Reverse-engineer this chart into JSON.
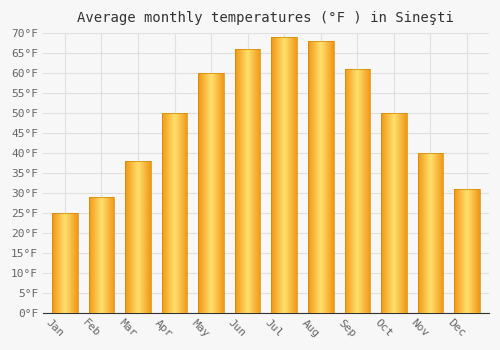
{
  "title": "Average monthly temperatures (°F ) in Sineşti",
  "months": [
    "Jan",
    "Feb",
    "Mar",
    "Apr",
    "May",
    "Jun",
    "Jul",
    "Aug",
    "Sep",
    "Oct",
    "Nov",
    "Dec"
  ],
  "values": [
    25,
    29,
    38,
    50,
    60,
    66,
    69,
    68,
    61,
    50,
    40,
    31
  ],
  "bar_color_top": "#F5A623",
  "bar_color_bottom": "#F5C842",
  "bar_color_center": "#FDE080",
  "bar_edge_color": "#E8960A",
  "ylim": [
    0,
    70
  ],
  "yticks": [
    0,
    5,
    10,
    15,
    20,
    25,
    30,
    35,
    40,
    45,
    50,
    55,
    60,
    65,
    70
  ],
  "ytick_labels": [
    "0°F",
    "5°F",
    "10°F",
    "15°F",
    "20°F",
    "25°F",
    "30°F",
    "35°F",
    "40°F",
    "45°F",
    "50°F",
    "55°F",
    "60°F",
    "65°F",
    "70°F"
  ],
  "background_color": "#f7f7f7",
  "plot_bg_color": "#f7f7f7",
  "grid_color": "#e0e0e0",
  "title_fontsize": 10,
  "tick_fontsize": 8,
  "xlabel_rotation": -45
}
